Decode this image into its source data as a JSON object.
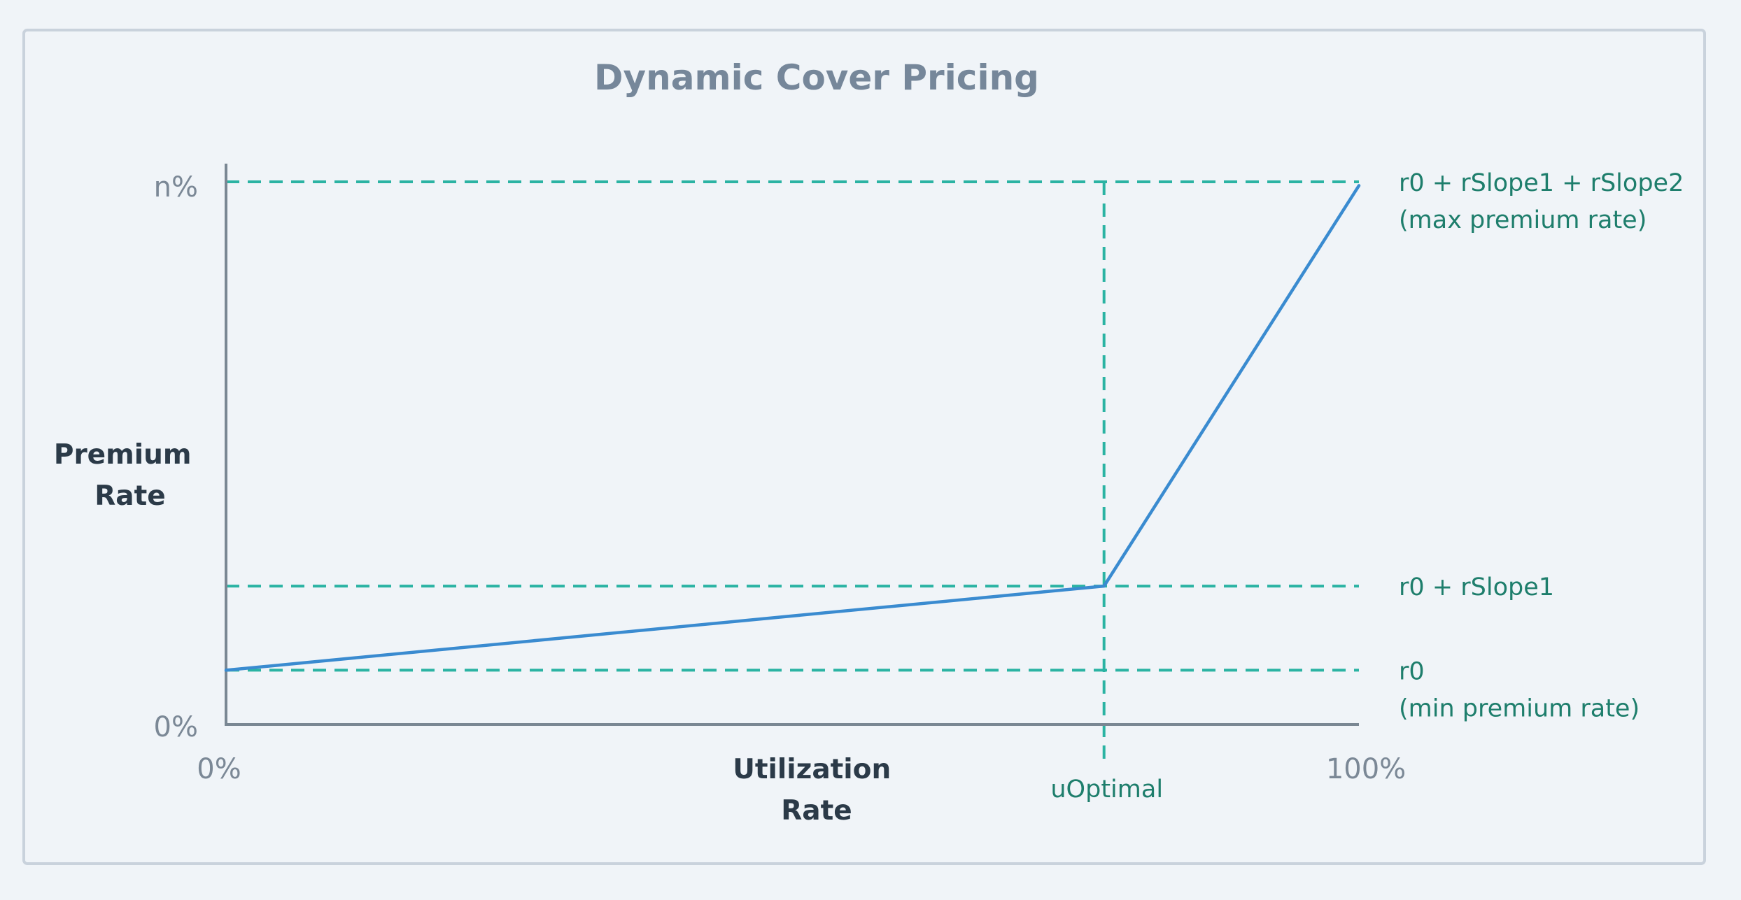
{
  "chart_data": {
    "type": "line",
    "title": "Dynamic Cover Pricing",
    "ylabel_lines": [
      "Premium",
      "Rate"
    ],
    "xlabel_lines": [
      "Utilization",
      "Rate"
    ],
    "x_ticks": [
      {
        "value": 0,
        "label": "0%"
      },
      {
        "value": 100,
        "label": "100%"
      }
    ],
    "y_ticks": [
      {
        "value": 0,
        "label": "0%"
      },
      {
        "value": 100,
        "label": "n%"
      }
    ],
    "xlim": [
      0,
      100
    ],
    "ylim": [
      0,
      100
    ],
    "grid": false,
    "series": [
      {
        "color": "#3a8bd0",
        "points": [
          {
            "x": 0,
            "y": 10
          },
          {
            "x": 77.5,
            "y": 25.5
          },
          {
            "x": 100,
            "y": 99.3
          }
        ]
      }
    ],
    "reference_lines": [
      {
        "orientation": "horizontal",
        "value": 100,
        "labels": [
          "r0 + rSlope1 + rSlope2",
          "(max premium rate)"
        ]
      },
      {
        "orientation": "horizontal",
        "value": 25.5,
        "labels": [
          "r0 + rSlope1"
        ]
      },
      {
        "orientation": "horizontal",
        "value": 10,
        "labels": [
          "r0",
          "(min premium rate)"
        ]
      },
      {
        "orientation": "vertical",
        "value": 77.5,
        "labels": [
          "uOptimal"
        ]
      }
    ],
    "colors": {
      "background": "#f0f4f8",
      "frame": "#c9d2dc",
      "axis": "#7a8793",
      "line": "#3a8bd0",
      "reference": "#2bb3a3",
      "reference_text": "#1e7e6c",
      "title": "#76879a",
      "axis_title": "#2b3a48",
      "tick_text": "#7b8896"
    }
  }
}
